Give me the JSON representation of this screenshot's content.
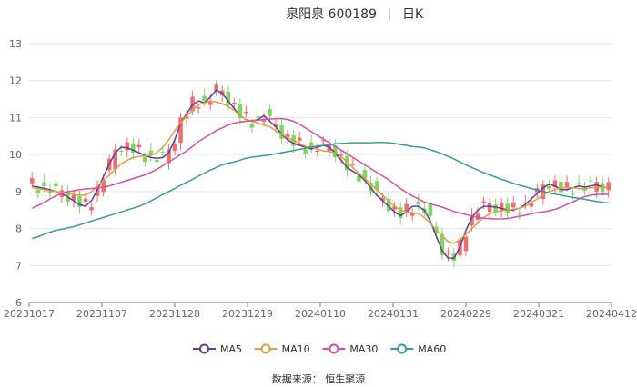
{
  "title": {
    "name": "泉阳泉 600189",
    "period": "日K"
  },
  "source": "数据来源：  恒生聚源",
  "chart_data": {
    "type": "candlestick",
    "ylim": [
      6,
      13
    ],
    "yticks": [
      6,
      7,
      8,
      9,
      10,
      11,
      12,
      13
    ],
    "xticks": [
      "20231017",
      "20231107",
      "20231128",
      "20231219",
      "20240110",
      "20240131",
      "20240229",
      "20240321",
      "20240412"
    ],
    "up_color": "#f06d6d",
    "down_color": "#7cd860",
    "legend_position": "bottom",
    "series": [
      {
        "name": "MA5",
        "color": "#5c3f9e",
        "values": [
          9.15,
          9.12,
          9.09,
          9.05,
          9.0,
          8.95,
          8.85,
          8.75,
          8.65,
          8.6,
          8.75,
          9.05,
          9.4,
          9.75,
          10.05,
          10.2,
          10.18,
          10.12,
          10.05,
          9.98,
          9.92,
          9.9,
          9.92,
          10.05,
          10.4,
          10.85,
          11.1,
          11.35,
          11.45,
          11.4,
          11.55,
          11.75,
          11.65,
          11.45,
          11.25,
          11.05,
          10.95,
          10.9,
          10.95,
          11.05,
          10.9,
          10.75,
          10.55,
          10.4,
          10.3,
          10.25,
          10.2,
          10.15,
          10.2,
          10.25,
          10.2,
          10.05,
          9.85,
          9.65,
          9.55,
          9.45,
          9.3,
          9.1,
          8.9,
          8.75,
          8.6,
          8.45,
          8.35,
          8.45,
          8.6,
          8.6,
          8.5,
          8.2,
          7.8,
          7.4,
          7.2,
          7.2,
          7.5,
          7.95,
          8.3,
          8.5,
          8.6,
          8.6,
          8.58,
          8.55,
          8.5,
          8.5,
          8.55,
          8.65,
          8.8,
          8.95,
          9.1,
          9.2,
          9.15,
          9.05,
          9.05,
          9.1,
          9.15,
          9.12,
          9.15,
          9.18,
          9.12,
          9.1
        ]
      },
      {
        "name": "MA10",
        "color": "#e09f47",
        "values": [
          9.1,
          9.08,
          9.05,
          9.02,
          9.0,
          8.98,
          8.95,
          8.92,
          8.9,
          8.9,
          9.0,
          9.15,
          9.3,
          9.45,
          9.6,
          9.75,
          9.85,
          9.92,
          9.95,
          9.97,
          9.98,
          10.05,
          10.2,
          10.4,
          10.65,
          10.85,
          11.05,
          11.2,
          11.35,
          11.4,
          11.45,
          11.42,
          11.38,
          11.3,
          11.2,
          11.05,
          10.95,
          10.9,
          10.85,
          10.8,
          10.75,
          10.65,
          10.55,
          10.45,
          10.38,
          10.3,
          10.22,
          10.2,
          10.15,
          10.1,
          10.08,
          10.05,
          9.95,
          9.8,
          9.65,
          9.5,
          9.35,
          9.2,
          9.05,
          8.9,
          8.75,
          8.6,
          8.5,
          8.45,
          8.42,
          8.4,
          8.3,
          8.15,
          7.95,
          7.8,
          7.65,
          7.6,
          7.7,
          7.85,
          8.0,
          8.15,
          8.3,
          8.4,
          8.45,
          8.48,
          8.5,
          8.52,
          8.55,
          8.6,
          8.7,
          8.8,
          8.9,
          9.0,
          9.05,
          9.1,
          9.1,
          9.1,
          9.08,
          9.08,
          9.1,
          9.12,
          9.12,
          9.1
        ]
      },
      {
        "name": "MA30",
        "color": "#d54eac",
        "values": [
          8.55,
          8.62,
          8.7,
          8.8,
          8.88,
          8.95,
          9.0,
          9.02,
          9.05,
          9.07,
          9.08,
          9.1,
          9.12,
          9.15,
          9.2,
          9.25,
          9.3,
          9.35,
          9.4,
          9.45,
          9.52,
          9.6,
          9.7,
          9.8,
          9.9,
          10.0,
          10.1,
          10.22,
          10.35,
          10.45,
          10.55,
          10.65,
          10.72,
          10.8,
          10.85,
          10.88,
          10.9,
          10.92,
          10.93,
          10.95,
          10.96,
          10.97,
          10.97,
          10.95,
          10.9,
          10.82,
          10.72,
          10.62,
          10.52,
          10.42,
          10.32,
          10.22,
          10.12,
          10.02,
          9.92,
          9.82,
          9.72,
          9.62,
          9.52,
          9.42,
          9.32,
          9.2,
          9.08,
          8.98,
          8.88,
          8.8,
          8.72,
          8.67,
          8.62,
          8.58,
          8.52,
          8.46,
          8.42,
          8.38,
          8.34,
          8.3,
          8.28,
          8.27,
          8.26,
          8.26,
          8.27,
          8.3,
          8.33,
          8.36,
          8.4,
          8.43,
          8.45,
          8.48,
          8.52,
          8.58,
          8.65,
          8.72,
          8.8,
          8.86,
          8.9,
          8.92,
          8.93,
          8.92
        ]
      },
      {
        "name": "MA60",
        "color": "#3a9c9c",
        "values": [
          7.73,
          7.78,
          7.84,
          7.9,
          7.95,
          7.98,
          8.02,
          8.05,
          8.1,
          8.15,
          8.2,
          8.25,
          8.3,
          8.35,
          8.4,
          8.45,
          8.5,
          8.55,
          8.6,
          8.67,
          8.75,
          8.83,
          8.92,
          9.0,
          9.08,
          9.17,
          9.25,
          9.33,
          9.42,
          9.5,
          9.58,
          9.65,
          9.72,
          9.77,
          9.8,
          9.85,
          9.9,
          9.93,
          9.95,
          9.97,
          9.99,
          10.02,
          10.05,
          10.08,
          10.11,
          10.14,
          10.17,
          10.2,
          10.23,
          10.25,
          10.27,
          10.29,
          10.3,
          10.31,
          10.32,
          10.32,
          10.32,
          10.32,
          10.33,
          10.33,
          10.32,
          10.3,
          10.27,
          10.25,
          10.22,
          10.2,
          10.18,
          10.13,
          10.08,
          10.02,
          9.95,
          9.88,
          9.8,
          9.72,
          9.65,
          9.58,
          9.51,
          9.45,
          9.39,
          9.33,
          9.28,
          9.22,
          9.17,
          9.13,
          9.08,
          9.04,
          9.0,
          8.96,
          8.93,
          8.9,
          8.87,
          8.84,
          8.82,
          8.79,
          8.76,
          8.73,
          8.71,
          8.69
        ]
      }
    ]
  }
}
